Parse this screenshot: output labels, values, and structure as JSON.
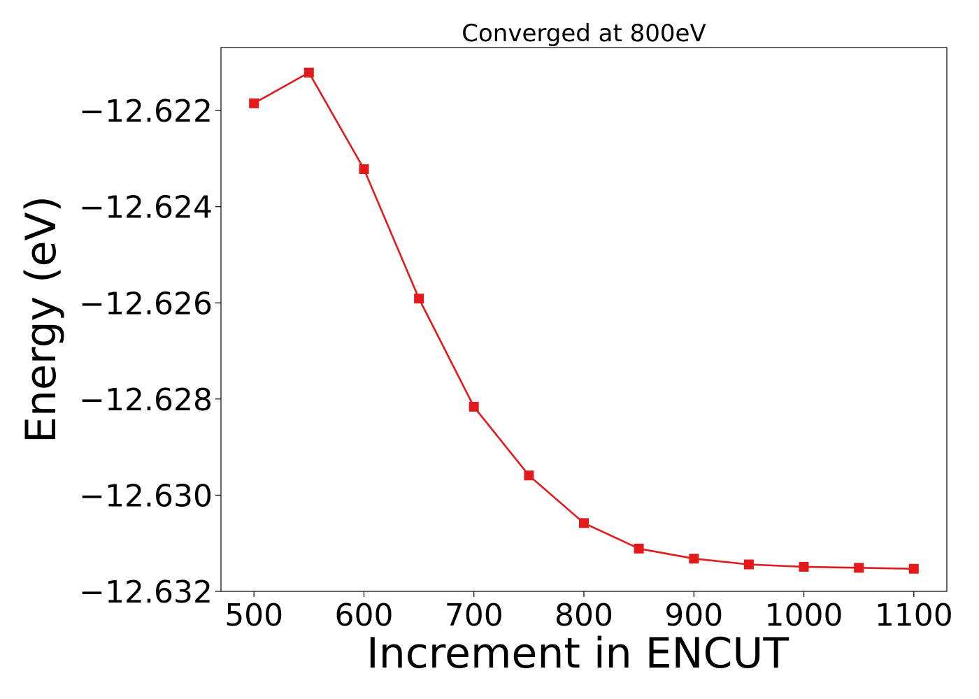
{
  "chart_data": {
    "type": "line",
    "title": "Converged at 800eV",
    "xlabel": "Increment in ENCUT",
    "ylabel": "Energy (eV)",
    "x": [
      500,
      550,
      600,
      650,
      700,
      750,
      800,
      850,
      900,
      950,
      1000,
      1050,
      1100
    ],
    "series": [
      {
        "values": [
          -12.62185,
          -12.62121,
          -12.62322,
          -12.62591,
          -12.62816,
          -12.62959,
          -12.63058,
          -12.63111,
          -12.63132,
          -12.63144,
          -12.63149,
          -12.63151,
          -12.63153
        ],
        "color": "#e31a1c",
        "marker": "square"
      }
    ],
    "xlim": [
      470,
      1130
    ],
    "ylim": [
      -12.632,
      -12.62069
    ],
    "xticks": [
      500,
      600,
      700,
      800,
      900,
      1000,
      1100
    ],
    "xtick_labels": [
      "500",
      "600",
      "700",
      "800",
      "900",
      "1000",
      "1100"
    ],
    "yticks": [
      -12.622,
      -12.624,
      -12.626,
      -12.628,
      -12.63,
      -12.632
    ],
    "ytick_labels": [
      "−12.622",
      "−12.624",
      "−12.626",
      "−12.628",
      "−12.630",
      "−12.632"
    ],
    "grid": false,
    "legend": "none"
  }
}
